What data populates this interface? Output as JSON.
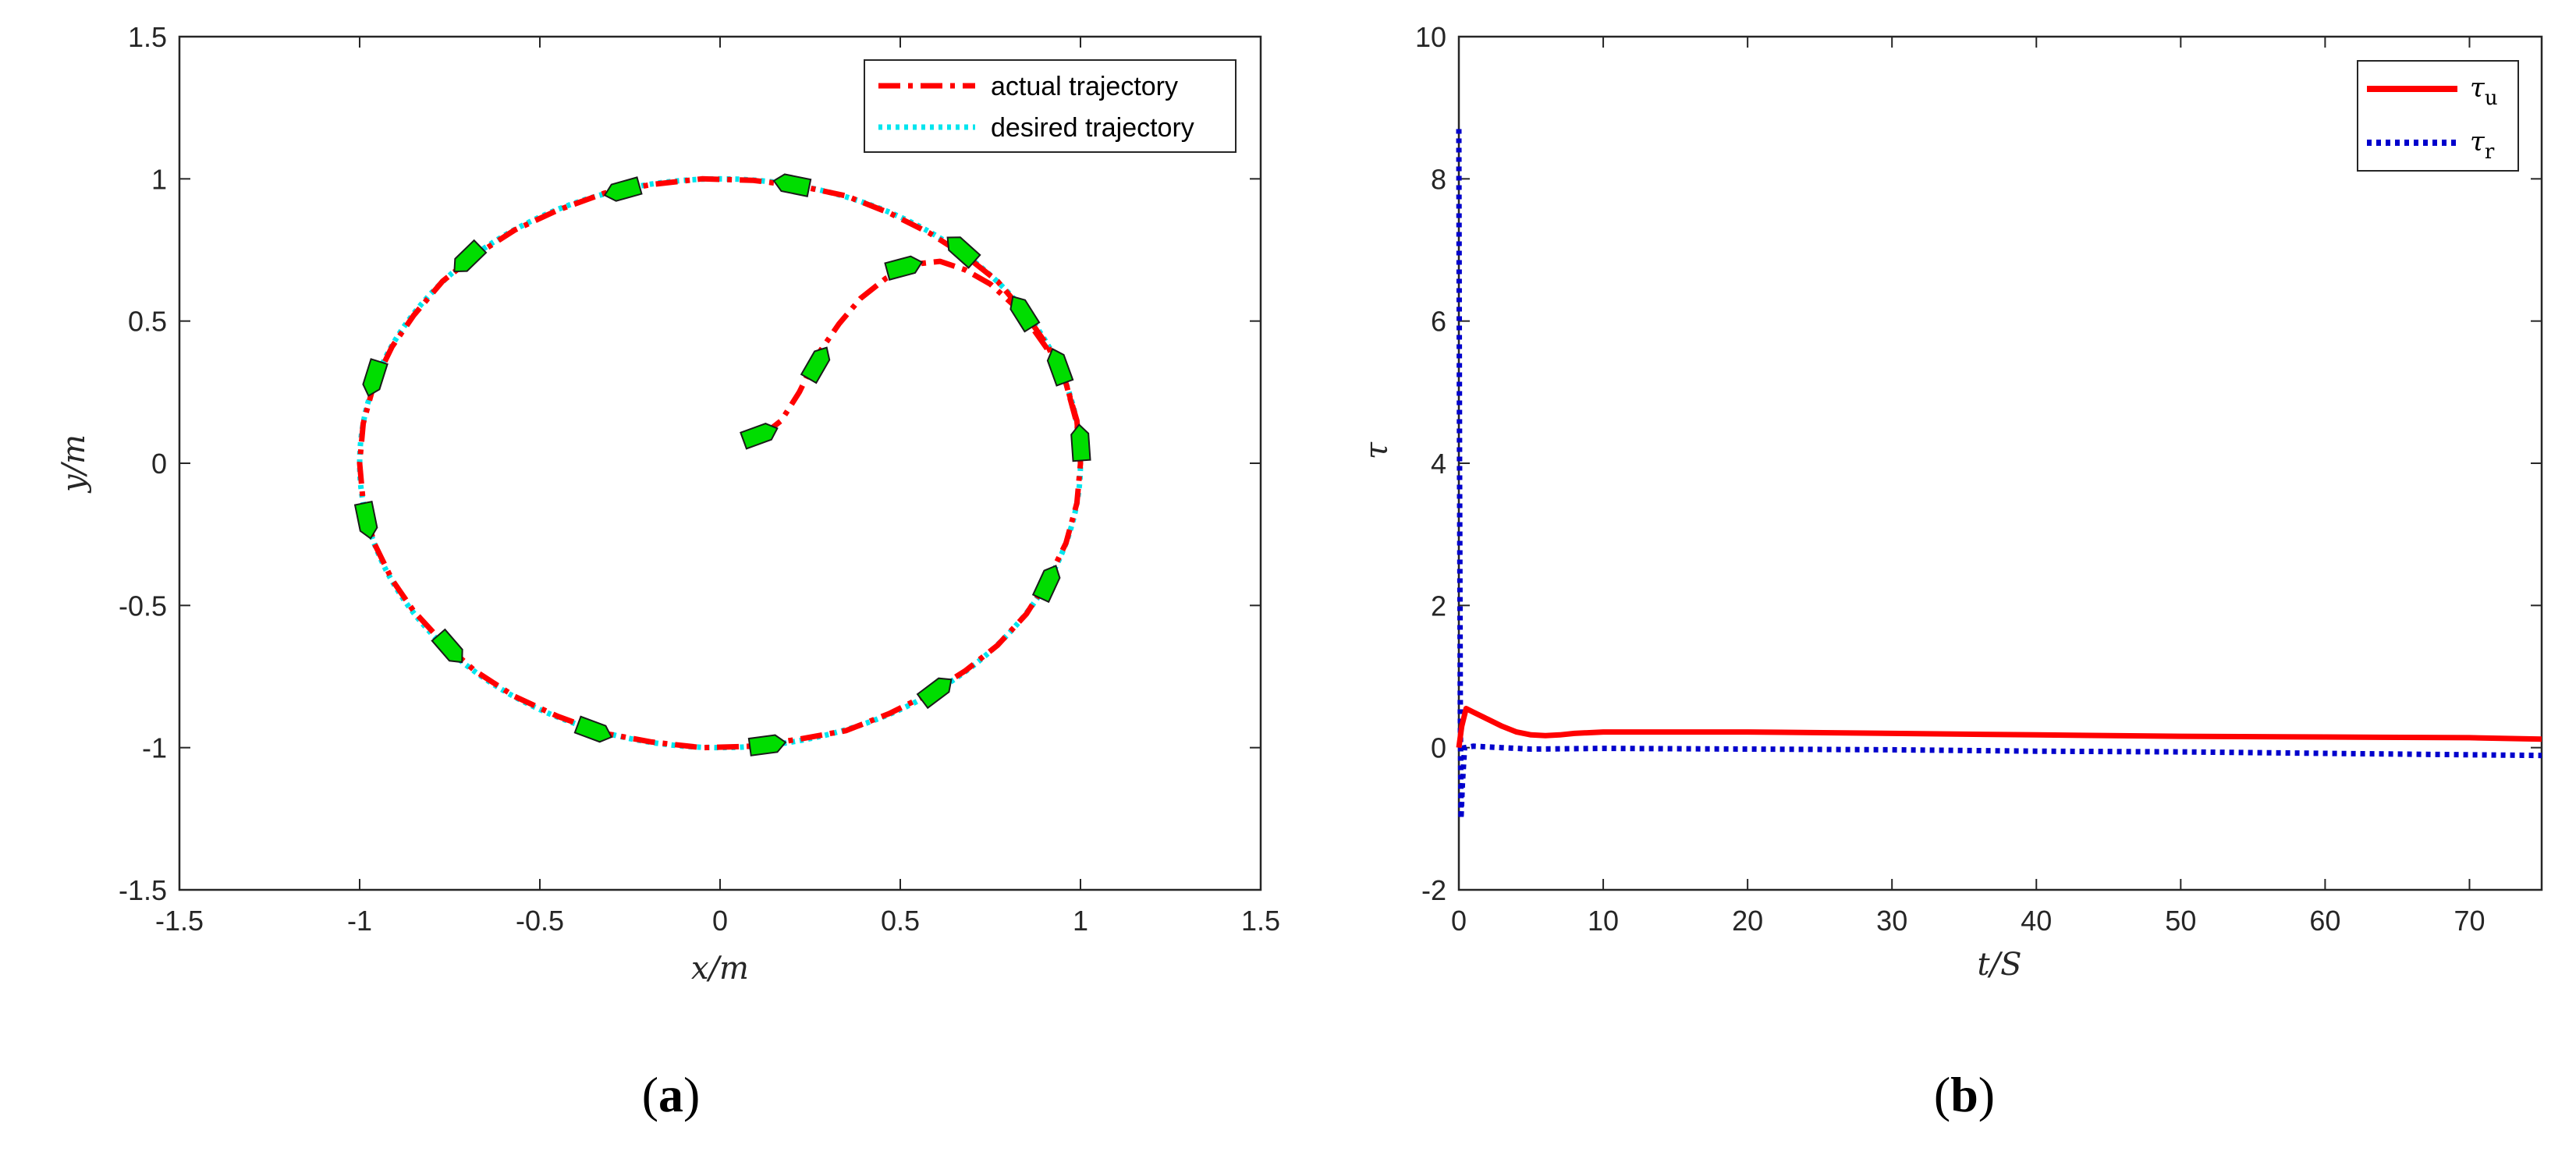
{
  "chart_data": [
    {
      "type": "line",
      "panel_label": {
        "open": "(",
        "letter": "a",
        "close": ")"
      },
      "xlabel": "x/m",
      "ylabel": "y/m",
      "xlim": [
        -1.5,
        1.5
      ],
      "ylim": [
        -1.5,
        1.5
      ],
      "xticks": [
        "-1.5",
        "-1",
        "-0.5",
        "0",
        "0.5",
        "1",
        "1.5"
      ],
      "yticks": [
        "-1.5",
        "-1",
        "-0.5",
        "0",
        "0.5",
        "1",
        "1.5"
      ],
      "legend_position": "top-right",
      "colors": {
        "actual": "#ff0000",
        "desired": "#00e5ee",
        "vessel": "#00dd00"
      },
      "series": [
        {
          "name": "actual trajectory",
          "style": "dash-dot",
          "points": [
            [
              0.12,
              0.1
            ],
            [
              0.17,
              0.15
            ],
            [
              0.22,
              0.25
            ],
            [
              0.27,
              0.38
            ],
            [
              0.33,
              0.49
            ],
            [
              0.39,
              0.58
            ],
            [
              0.46,
              0.65
            ],
            [
              0.54,
              0.7
            ],
            [
              0.61,
              0.71
            ],
            [
              0.68,
              0.68
            ],
            [
              0.75,
              0.63
            ],
            [
              0.82,
              0.55
            ],
            [
              0.87,
              0.47
            ],
            [
              0.92,
              0.38
            ],
            [
              0.96,
              0.28
            ],
            [
              0.99,
              0.15
            ],
            [
              1.0,
              0.0
            ],
            [
              0.99,
              -0.14
            ],
            [
              0.96,
              -0.28
            ],
            [
              0.91,
              -0.41
            ],
            [
              0.85,
              -0.53
            ],
            [
              0.77,
              -0.64
            ],
            [
              0.68,
              -0.73
            ],
            [
              0.58,
              -0.81
            ],
            [
              0.47,
              -0.88
            ],
            [
              0.35,
              -0.94
            ],
            [
              0.22,
              -0.97
            ],
            [
              0.09,
              -0.995
            ],
            [
              -0.05,
              -1.0
            ],
            [
              -0.19,
              -0.98
            ],
            [
              -0.32,
              -0.95
            ],
            [
              -0.45,
              -0.89
            ],
            [
              -0.57,
              -0.82
            ],
            [
              -0.68,
              -0.73
            ],
            [
              -0.77,
              -0.63
            ],
            [
              -0.85,
              -0.52
            ],
            [
              -0.91,
              -0.41
            ],
            [
              -0.96,
              -0.28
            ],
            [
              -0.99,
              -0.14
            ],
            [
              -1.0,
              0.0
            ],
            [
              -0.99,
              0.14
            ],
            [
              -0.96,
              0.28
            ],
            [
              -0.91,
              0.41
            ],
            [
              -0.85,
              0.52
            ],
            [
              -0.77,
              0.64
            ],
            [
              -0.68,
              0.73
            ],
            [
              -0.57,
              0.82
            ],
            [
              -0.45,
              0.89
            ],
            [
              -0.32,
              0.95
            ],
            [
              -0.19,
              0.98
            ],
            [
              -0.05,
              1.0
            ],
            [
              0.09,
              0.995
            ],
            [
              0.22,
              0.975
            ],
            [
              0.35,
              0.94
            ],
            [
              0.47,
              0.88
            ],
            [
              0.58,
              0.81
            ],
            [
              0.68,
              0.73
            ],
            [
              0.77,
              0.64
            ],
            [
              0.85,
              0.52
            ],
            [
              0.91,
              0.41
            ],
            [
              0.96,
              0.28
            ],
            [
              0.99,
              0.14
            ],
            [
              1.0,
              0.0
            ]
          ]
        },
        {
          "name": "desired trajectory",
          "style": "dotted",
          "shape": "unit circle",
          "center": [
            0,
            0
          ],
          "radius": 1
        }
      ],
      "vessel_markers": [
        [
          0.11,
          0.1
        ],
        [
          0.27,
          0.35
        ],
        [
          0.51,
          0.69
        ],
        [
          0.2,
          0.98
        ],
        [
          0.67,
          0.75
        ],
        [
          0.84,
          0.53
        ],
        [
          0.94,
          0.34
        ],
        [
          1.0,
          0.07
        ],
        [
          0.91,
          -0.42
        ],
        [
          0.6,
          -0.8
        ],
        [
          0.13,
          -0.99
        ],
        [
          -0.35,
          -0.94
        ],
        [
          -0.75,
          -0.65
        ],
        [
          -0.98,
          -0.2
        ],
        [
          -0.96,
          0.3
        ],
        [
          -0.7,
          0.72
        ],
        [
          -0.27,
          0.96
        ]
      ]
    },
    {
      "type": "line",
      "panel_label": {
        "open": "(",
        "letter": "b",
        "close": ")"
      },
      "xlabel": "t/S",
      "ylabel": "τ",
      "xlim": [
        0,
        75
      ],
      "ylim": [
        -2,
        10
      ],
      "xticks": [
        "0",
        "10",
        "20",
        "30",
        "40",
        "50",
        "60",
        "70"
      ],
      "yticks": [
        "-2",
        "0",
        "2",
        "4",
        "6",
        "8",
        "10"
      ],
      "legend_position": "top-right",
      "colors": {
        "tau_u": "#ff0000",
        "tau_r": "#0000cc"
      },
      "series": [
        {
          "name": "τ",
          "subscript": "u",
          "style": "solid",
          "points": [
            [
              0,
              0.0
            ],
            [
              0.2,
              0.3
            ],
            [
              0.5,
              0.55
            ],
            [
              1,
              0.5
            ],
            [
              2,
              0.4
            ],
            [
              3,
              0.3
            ],
            [
              4,
              0.22
            ],
            [
              5,
              0.18
            ],
            [
              6,
              0.17
            ],
            [
              7,
              0.18
            ],
            [
              8,
              0.2
            ],
            [
              10,
              0.22
            ],
            [
              20,
              0.22
            ],
            [
              30,
              0.2
            ],
            [
              40,
              0.18
            ],
            [
              50,
              0.16
            ],
            [
              60,
              0.15
            ],
            [
              70,
              0.14
            ],
            [
              75,
              0.12
            ]
          ]
        },
        {
          "name": "τ",
          "subscript": "r",
          "style": "dotted",
          "points": [
            [
              0,
              8.7
            ],
            [
              0.05,
              4.0
            ],
            [
              0.1,
              0.5
            ],
            [
              0.15,
              -1.0
            ],
            [
              0.25,
              -0.5
            ],
            [
              0.4,
              0.0
            ],
            [
              1,
              0.02
            ],
            [
              3,
              0.0
            ],
            [
              5,
              -0.02
            ],
            [
              10,
              -0.01
            ],
            [
              20,
              -0.02
            ],
            [
              30,
              -0.03
            ],
            [
              40,
              -0.05
            ],
            [
              50,
              -0.06
            ],
            [
              60,
              -0.08
            ],
            [
              70,
              -0.1
            ],
            [
              75,
              -0.11
            ]
          ]
        }
      ]
    }
  ]
}
